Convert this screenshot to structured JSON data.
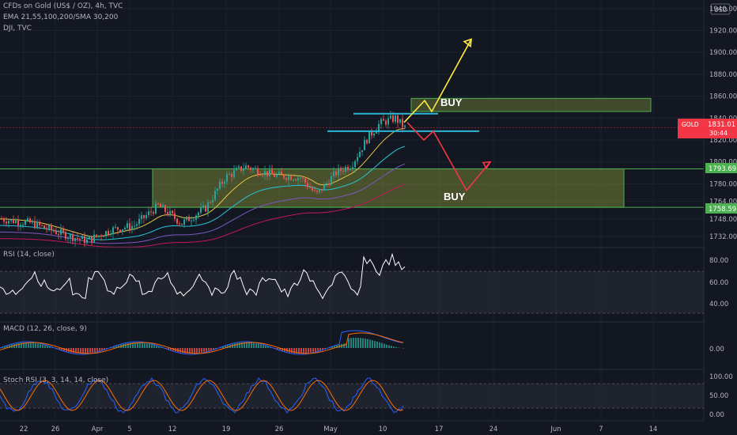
{
  "header": {
    "line1": "CFDs on Gold (US$ / OZ), 4h, TVC",
    "line2": "EMA 21,55,100,200/SMA 30,200",
    "line3": "DJI, TVC"
  },
  "currency": "USD",
  "price_badge": {
    "symbol": "GOLD",
    "price": "1831.01",
    "countdown": "30:44",
    "color": "#f23645"
  },
  "level_badges": [
    {
      "label": "1793.69",
      "value": 1793.69,
      "color": "#4caf50"
    },
    {
      "label": "1758.59",
      "value": 1758.59,
      "color": "#4caf50"
    }
  ],
  "annotations": {
    "buy_upper": "BUY",
    "buy_lower": "BUY"
  },
  "panes": {
    "rsi": {
      "title": "RSI (14, close)",
      "ticks": [
        "80.00",
        "60.00",
        "40.00"
      ]
    },
    "macd": {
      "title": "MACD (12, 26, close, 9)",
      "ticks": [
        "0.00"
      ]
    },
    "stoch": {
      "title": "Stoch RSI (3, 3, 14, 14, close)",
      "ticks": [
        "100.00",
        "50.00",
        "0.00"
      ]
    }
  },
  "chart_data": {
    "type": "candlestick",
    "y_ticks": [
      1940,
      1920,
      1900,
      1880,
      1860,
      1840,
      1820,
      1800,
      1780,
      1764,
      1748,
      1732
    ],
    "ylim": [
      1724,
      1942
    ],
    "x_tick_labels": [
      "22",
      "26",
      "Apr",
      "5",
      "12",
      "19",
      "26",
      "May",
      "10",
      "17",
      "24",
      "Jun",
      "7",
      "14"
    ],
    "support_zone": [
      1758.59,
      1793.69
    ],
    "resistance_zone": [
      1846,
      1858
    ],
    "resistance_lines": [
      1844,
      1828
    ],
    "current_price": 1831.01,
    "projection_up": [
      1836,
      1856,
      1846,
      1912
    ],
    "projection_down": [
      1836,
      1820,
      1828,
      1774,
      1800
    ],
    "colors": {
      "up": "#26a69a",
      "down": "#ef5350",
      "zone": "#4caf50",
      "projection_up": "#ffeb3b",
      "projection_down": "#f23645",
      "level_line": "#2bb5d6"
    }
  }
}
